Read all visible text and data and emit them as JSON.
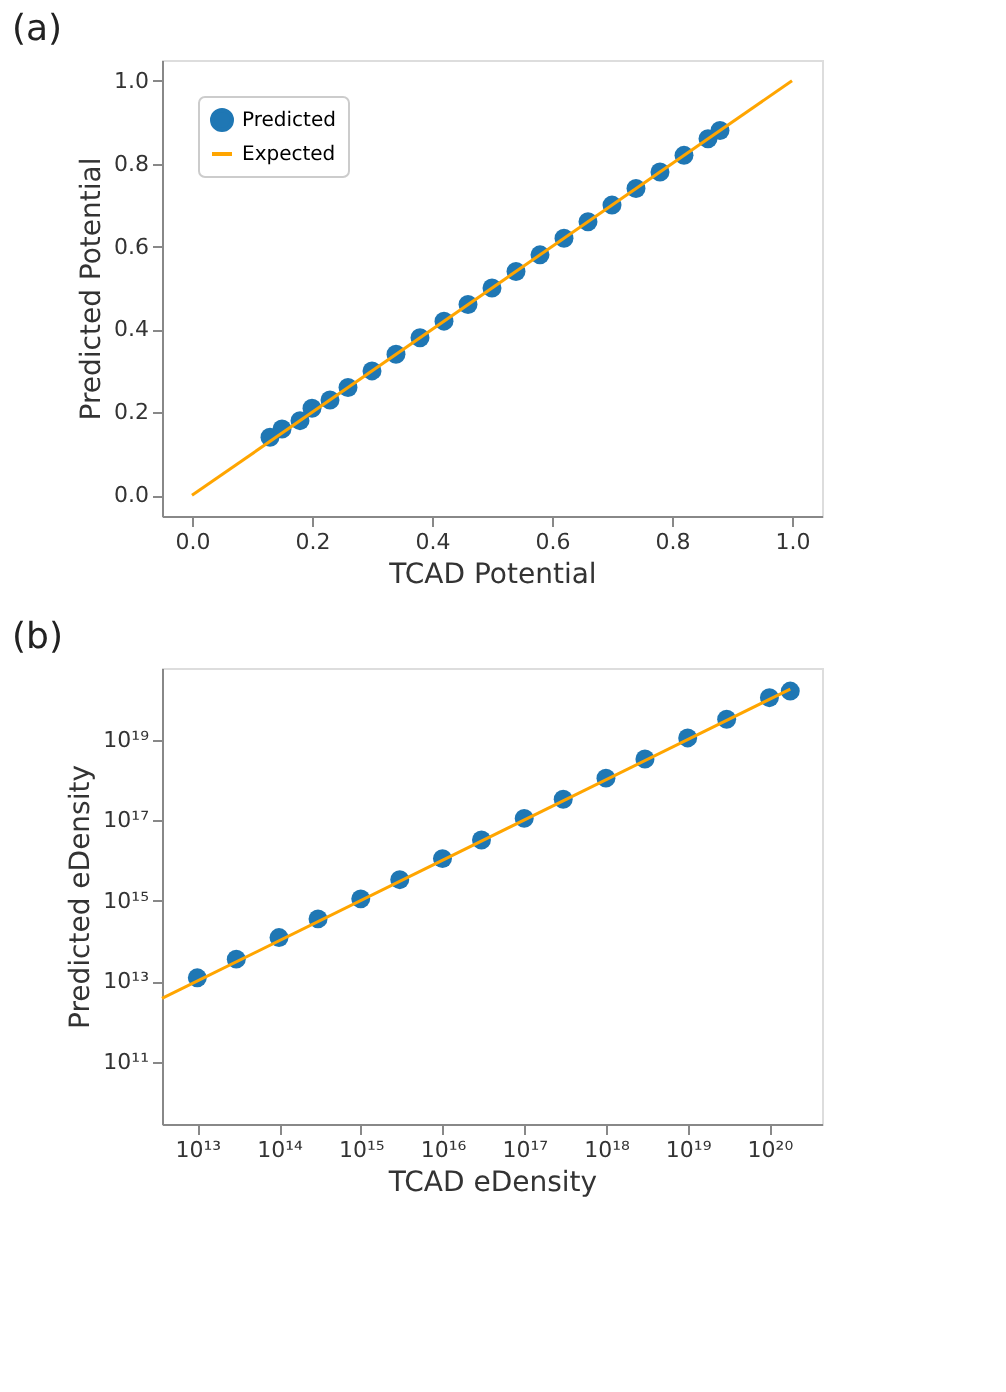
{
  "chart_data": [
    {
      "type": "scatter",
      "title": "(a)",
      "xlabel": "TCAD Potential",
      "ylabel": "Predicted Potential",
      "legend": "top left",
      "grid": false,
      "xlim": [
        -0.05,
        1.05
      ],
      "ylim": [
        -0.05,
        1.05
      ],
      "xticks": [
        {
          "value": 0,
          "label": "0.0"
        },
        {
          "value": 0.2,
          "label": "0.2"
        },
        {
          "value": 0.4,
          "label": "0.4"
        },
        {
          "value": 0.6,
          "label": "0.6"
        },
        {
          "value": 0.8,
          "label": "0.8"
        },
        {
          "value": 1,
          "label": "1.0"
        }
      ],
      "yticks": [
        {
          "value": 0,
          "label": "0.0"
        },
        {
          "value": 0.2,
          "label": "0.2"
        },
        {
          "value": 0.4,
          "label": "0.4"
        },
        {
          "value": 0.6,
          "label": "0.6"
        },
        {
          "value": 0.8,
          "label": "0.8"
        },
        {
          "value": 1,
          "label": "1.0"
        }
      ],
      "series": [
        {
          "name": "Predicted",
          "marker": "circle",
          "color": "#1f77b4",
          "x": [
            0.13,
            0.15,
            0.18,
            0.2,
            0.23,
            0.26,
            0.3,
            0.34,
            0.38,
            0.42,
            0.46,
            0.5,
            0.54,
            0.58,
            0.62,
            0.66,
            0.7,
            0.74,
            0.78,
            0.82,
            0.86,
            0.88
          ],
          "values": [
            0.14,
            0.16,
            0.18,
            0.21,
            0.23,
            0.26,
            0.3,
            0.34,
            0.38,
            0.42,
            0.46,
            0.5,
            0.54,
            0.58,
            0.62,
            0.66,
            0.7,
            0.74,
            0.78,
            0.82,
            0.86,
            0.88
          ]
        },
        {
          "name": "Expected",
          "type": "line",
          "marker": "none",
          "line_style": "solid",
          "color": "#ffa500",
          "x": [
            0,
            1
          ],
          "values": [
            0,
            1
          ]
        }
      ]
    },
    {
      "type": "scatter",
      "title": "(b)",
      "xlabel": "TCAD eDensity",
      "ylabel": "Predicted eDensity",
      "legend": "top left",
      "grid": false,
      "log": "xy",
      "xlim": [
        3700000000000.0,
        4.4e+20
      ],
      "ylim": [
        2800000000.0,
        6e+20
      ],
      "xticks": [
        {
          "value": 10000000000000.0,
          "label": "10¹³"
        },
        {
          "value": 100000000000000.0,
          "label": "10¹⁴"
        },
        {
          "value": 1000000000000000.0,
          "label": "10¹⁵"
        },
        {
          "value": 1e+16,
          "label": "10¹⁶"
        },
        {
          "value": 1e+17,
          "label": "10¹⁷"
        },
        {
          "value": 1e+18,
          "label": "10¹⁸"
        },
        {
          "value": 1e+19,
          "label": "10¹⁹"
        },
        {
          "value": 1e+20,
          "label": "10²⁰"
        }
      ],
      "yticks": [
        {
          "value": 100000000000.0,
          "label": "10¹¹"
        },
        {
          "value": 10000000000000.0,
          "label": "10¹³"
        },
        {
          "value": 1000000000000000.0,
          "label": "10¹⁵"
        },
        {
          "value": 1e+17,
          "label": "10¹⁷"
        },
        {
          "value": 1e+19,
          "label": "10¹⁹"
        }
      ],
      "series": [
        {
          "name": "Predicted",
          "marker": "circle",
          "color": "#1f77b4",
          "x": [
            10000000000000.0,
            30000000000000.0,
            100000000000000.0,
            300000000000000.0,
            1000000000000000.0,
            3000000000000000.0,
            1e+16,
            3e+16,
            1e+17,
            3e+17,
            1e+18,
            3e+18,
            1e+19,
            3e+19,
            1e+20,
            1.8e+20
          ],
          "values": [
            12000000000000.0,
            35000000000000.0,
            120000000000000.0,
            350000000000000.0,
            1100000000000000.0,
            3300000000000000.0,
            1.1e+16,
            3.2e+16,
            1.1e+17,
            3.3e+17,
            1.1e+18,
            3.3e+18,
            1.1e+19,
            3.2e+19,
            1.1e+20,
            1.6e+20
          ]
        },
        {
          "name": "Expected",
          "type": "line",
          "marker": "none",
          "line_style": "solid",
          "color": "#ffa500",
          "x": [
            3700000000000.0,
            1.8e+20
          ],
          "values": [
            3700000000000.0,
            1.8e+20
          ]
        }
      ]
    }
  ]
}
